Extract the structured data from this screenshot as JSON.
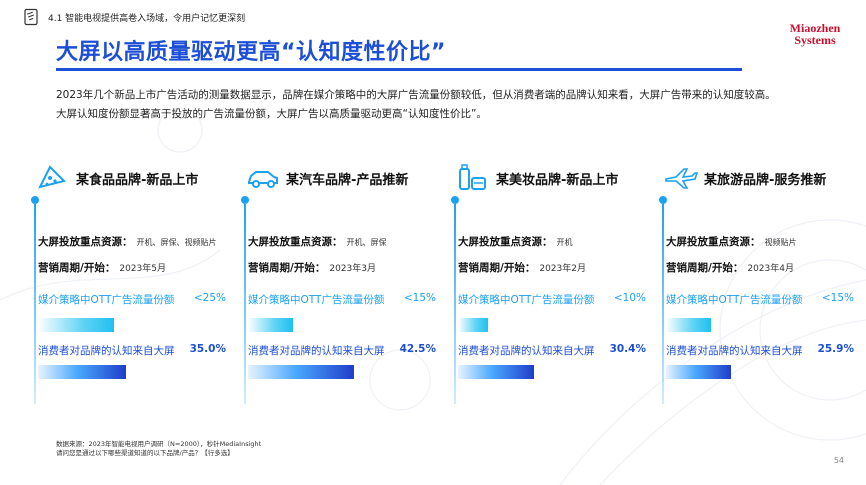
{
  "header": {
    "section_label": "4.1 智能电视提供高卷入场域，令用户记忆更深刻",
    "title": "大屏以高质量驱动更高“认知度性价比”",
    "logo": [
      "Miaozhen",
      "Systems"
    ]
  },
  "intro": [
    "2023年几个新品上市广告活动的测量数据显示，品牌在媒介策略中的大屏广告流量份额较低，但从消费者端的品牌认知来看，大屏广告带来的认知度较高。",
    "大屏认知度份额显著高于投放的广告流量份额，大屏广告以高质量驱动更高“认知度性价比”。"
  ],
  "labels": {
    "resource": "大屏投放重点资源：",
    "period": "营销周期/开始：",
    "ott_share": "媒介策略中OTT广告流量份额",
    "recognition": "消费者对品牌的认知来自大屏"
  },
  "columns": [
    {
      "icon": "pizza-slice-icon",
      "title": "某食品品牌-新品上市",
      "resource": "开机、屏保、视频贴片",
      "period": "2023年5月",
      "ott_share_text": "<25%",
      "ott_share": 0.25,
      "recognition_text": "35.0%",
      "recognition": 0.35
    },
    {
      "icon": "car-icon",
      "title": "某汽车品牌-产品推新",
      "resource": "开机、屏保",
      "period": "2023年3月",
      "ott_share_text": "<15%",
      "ott_share": 0.15,
      "recognition_text": "42.5%",
      "recognition": 0.425
    },
    {
      "icon": "cosmetics-icon",
      "title": "某美妆品牌-新品上市",
      "resource": "开机",
      "period": "2023年2月",
      "ott_share_text": "<10%",
      "ott_share": 0.1,
      "recognition_text": "30.4%",
      "recognition": 0.304
    },
    {
      "icon": "airplane-icon",
      "title": "某旅游品牌-服务推新",
      "resource": "视频贴片",
      "period": "2023年4月",
      "ott_share_text": "<15%",
      "ott_share": 0.15,
      "recognition_text": "25.9%",
      "recognition": 0.259
    }
  ],
  "footer": {
    "source_lines": [
      "数据来源：2023年智能电视用户调研（N=2000），秒针MediaInsight",
      "请问您是通过以下哪些渠道知道的以下品牌/产品？【行多选】"
    ],
    "page_number": "54"
  },
  "colors": {
    "accent": "#1d4fd6",
    "light_accent": "#1da1f2",
    "logo": "#c8102e"
  }
}
